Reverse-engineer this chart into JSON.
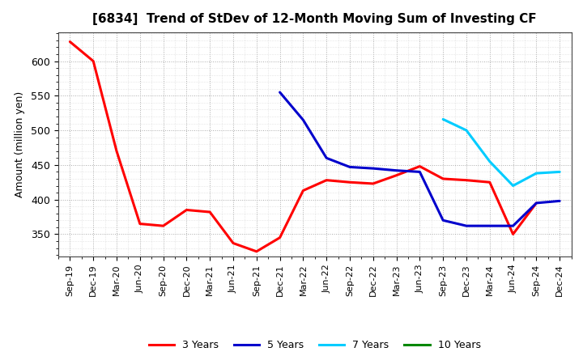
{
  "title": "[6834]  Trend of StDev of 12-Month Moving Sum of Investing CF",
  "ylabel": "Amount (million yen)",
  "background_color": "#ffffff",
  "ylim": [
    318,
    642
  ],
  "x_labels": [
    "Sep-19",
    "Dec-19",
    "Mar-20",
    "Jun-20",
    "Sep-20",
    "Dec-20",
    "Mar-21",
    "Jun-21",
    "Sep-21",
    "Dec-21",
    "Mar-22",
    "Jun-22",
    "Sep-22",
    "Dec-22",
    "Mar-23",
    "Jun-23",
    "Sep-23",
    "Dec-23",
    "Mar-24",
    "Jun-24",
    "Sep-24",
    "Dec-24"
  ],
  "series_3y": {
    "name": "3 Years",
    "color": "#ff0000",
    "lw": 2.2,
    "x": [
      0,
      1,
      2,
      3,
      4,
      5,
      6,
      7,
      8,
      9,
      10,
      11,
      12,
      13,
      14,
      15,
      16,
      17,
      18,
      19,
      20
    ],
    "y": [
      628,
      600,
      470,
      365,
      362,
      385,
      382,
      337,
      325,
      345,
      413,
      428,
      425,
      423,
      435,
      448,
      430,
      428,
      425,
      350,
      395
    ]
  },
  "series_5y": {
    "name": "5 Years",
    "color": "#0000cc",
    "lw": 2.2,
    "x": [
      9,
      10,
      11,
      12,
      13,
      14,
      15,
      16,
      17,
      18,
      19,
      20,
      21
    ],
    "y": [
      555,
      515,
      460,
      447,
      445,
      442,
      440,
      370,
      362,
      362,
      362,
      395,
      398
    ]
  },
  "series_7y": {
    "name": "7 Years",
    "color": "#00ccff",
    "lw": 2.2,
    "x": [
      16,
      17,
      18,
      19,
      20,
      21
    ],
    "y": [
      516,
      500,
      455,
      420,
      438,
      440
    ]
  },
  "series_10y": {
    "name": "10 Years",
    "color": "#008800",
    "lw": 2.2,
    "x": [],
    "y": []
  },
  "legend_colors": [
    "#ff0000",
    "#0000cc",
    "#00ccff",
    "#008800"
  ],
  "legend_labels": [
    "3 Years",
    "5 Years",
    "7 Years",
    "10 Years"
  ]
}
